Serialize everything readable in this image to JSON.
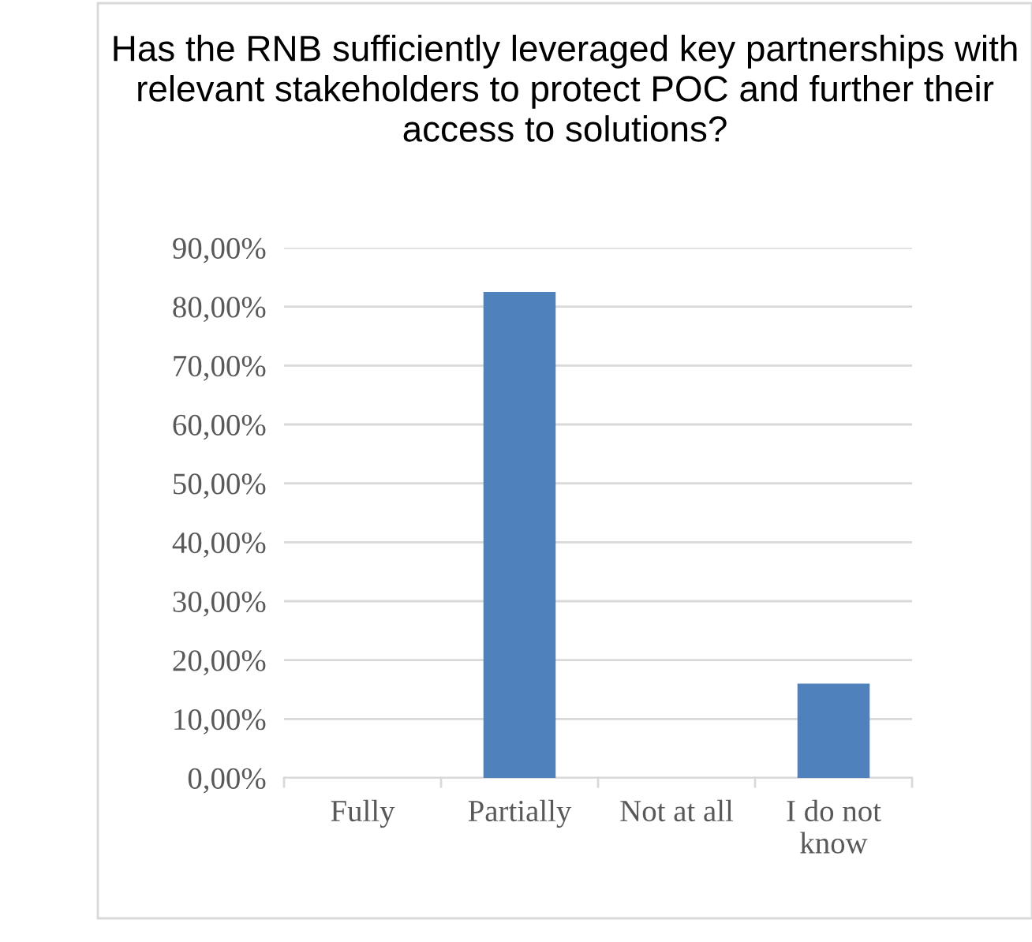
{
  "chart_data": {
    "type": "bar",
    "title": "Has the RNB sufficiently leveraged key partnerships with relevant stakeholders to protect POC and further their access to solutions?",
    "categories": [
      "Fully",
      "Partially",
      "Not at all",
      "I do not\nknow"
    ],
    "values": [
      0,
      82.5,
      0,
      16.0
    ],
    "color": "#4f81bd",
    "ylim": [
      0,
      90
    ],
    "yticks": [
      {
        "value": 0,
        "label": "0,00%"
      },
      {
        "value": 10,
        "label": "10,00%"
      },
      {
        "value": 20,
        "label": "20,00%"
      },
      {
        "value": 30,
        "label": "30,00%"
      },
      {
        "value": 40,
        "label": "40,00%"
      },
      {
        "value": 50,
        "label": "50,00%"
      },
      {
        "value": 60,
        "label": "60,00%"
      },
      {
        "value": 70,
        "label": "70,00%"
      },
      {
        "value": 80,
        "label": "80,00%"
      },
      {
        "value": 90,
        "label": "90,00%"
      }
    ],
    "grid": "y"
  }
}
